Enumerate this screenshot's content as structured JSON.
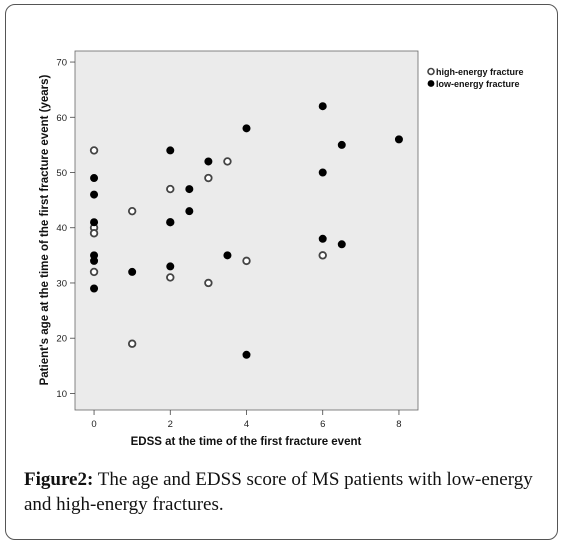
{
  "caption": {
    "label": "Figure2:",
    "text": " The age and EDSS score of MS patients with low-energy and high-energy fractures."
  },
  "chart_data": {
    "type": "scatter",
    "xlabel": "EDSS at the time of the first fracture event",
    "ylabel": "Patient's age at the time of the first fracture event (years)",
    "xlim": [
      -0.5,
      8.5
    ],
    "ylim": [
      7,
      72
    ],
    "xticks": [
      0,
      2,
      4,
      6,
      8
    ],
    "yticks": [
      10,
      20,
      30,
      40,
      50,
      60,
      70
    ],
    "grid": false,
    "plot_background": "#ebebeb",
    "legend_position": "top-right",
    "series": [
      {
        "name": "high-energy fracture",
        "marker": "open-circle",
        "color": "#444444",
        "points": [
          [
            0,
            54
          ],
          [
            0,
            40
          ],
          [
            0,
            39
          ],
          [
            0,
            32
          ],
          [
            1,
            43
          ],
          [
            1,
            19
          ],
          [
            2,
            47
          ],
          [
            2,
            41
          ],
          [
            2,
            31
          ],
          [
            3,
            49
          ],
          [
            3,
            30
          ],
          [
            3.5,
            52
          ],
          [
            4,
            34
          ],
          [
            6,
            35
          ]
        ]
      },
      {
        "name": "low-energy fracture",
        "marker": "filled-circle",
        "color": "#000000",
        "points": [
          [
            0,
            49
          ],
          [
            0,
            46
          ],
          [
            0,
            41
          ],
          [
            0,
            35
          ],
          [
            0,
            34
          ],
          [
            0,
            29
          ],
          [
            1,
            32
          ],
          [
            2,
            54
          ],
          [
            2,
            41
          ],
          [
            2,
            33
          ],
          [
            2.5,
            47
          ],
          [
            2.5,
            43
          ],
          [
            3,
            52
          ],
          [
            3.5,
            35
          ],
          [
            4,
            58
          ],
          [
            4,
            17
          ],
          [
            6,
            62
          ],
          [
            6,
            50
          ],
          [
            6,
            38
          ],
          [
            6.5,
            55
          ],
          [
            6.5,
            37
          ],
          [
            8,
            56
          ]
        ]
      }
    ]
  }
}
